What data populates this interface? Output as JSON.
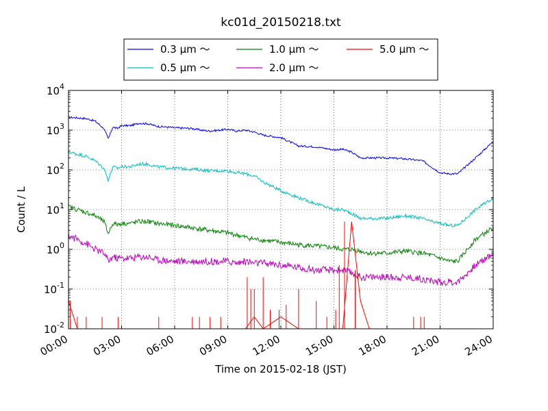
{
  "chart_data": {
    "type": "line",
    "title": "kc01d_20150218.txt",
    "xlabel": "Time on 2015-02-18 (JST)",
    "ylabel": "Count / L",
    "yscale": "log",
    "ylim": [
      0.01,
      10000
    ],
    "xlim": [
      "00:00",
      "24:00"
    ],
    "grid": true,
    "legend_position": "top-center",
    "x_ticks": [
      "00:00",
      "03:00",
      "06:00",
      "09:00",
      "12:00",
      "15:00",
      "18:00",
      "21:00",
      "24:00"
    ],
    "y_ticks": [
      {
        "base": "10",
        "exp": "-2"
      },
      {
        "base": "10",
        "exp": "-1"
      },
      {
        "base": "10",
        "exp": "0"
      },
      {
        "base": "10",
        "exp": "1"
      },
      {
        "base": "10",
        "exp": "2"
      },
      {
        "base": "10",
        "exp": "3"
      },
      {
        "base": "10",
        "exp": "4"
      }
    ],
    "x_hours": [
      0,
      0.5,
      1,
      1.5,
      2,
      2.25,
      2.5,
      2.75,
      3,
      3.5,
      4,
      4.5,
      5,
      6,
      7,
      7.5,
      8,
      9,
      9.5,
      10,
      10.5,
      11,
      12,
      13,
      14,
      15,
      15.5,
      16,
      16.5,
      17,
      18,
      19,
      20,
      20.5,
      21,
      21.5,
      22,
      23,
      24
    ],
    "series": [
      {
        "name": "0.3 μm ～",
        "color": "#0000ff",
        "values": [
          2100,
          2050,
          1950,
          1700,
          1100,
          600,
          1200,
          1100,
          1300,
          1300,
          1500,
          1450,
          1250,
          1150,
          1100,
          1000,
          950,
          1050,
          950,
          1000,
          900,
          750,
          650,
          400,
          380,
          320,
          330,
          280,
          200,
          200,
          200,
          190,
          170,
          120,
          85,
          80,
          80,
          200,
          520
        ]
      },
      {
        "name": "0.5 μm ～",
        "color": "#00bfbf",
        "values": [
          280,
          250,
          220,
          170,
          110,
          55,
          120,
          110,
          120,
          120,
          140,
          140,
          120,
          110,
          105,
          100,
          95,
          95,
          85,
          80,
          70,
          50,
          30,
          20,
          14,
          10,
          10,
          8,
          6,
          6,
          6,
          7,
          6,
          5,
          4.5,
          4,
          4,
          10,
          20
        ]
      },
      {
        "name": "1.0 μm ～",
        "color": "#008000",
        "values": [
          12,
          10,
          8.5,
          7,
          5,
          2.5,
          4.5,
          4.2,
          4.5,
          4.5,
          5,
          5,
          4.5,
          4,
          3.5,
          3.2,
          3,
          2.6,
          2.3,
          2,
          1.8,
          1.7,
          1.5,
          1.3,
          1.2,
          1.1,
          1.0,
          1.0,
          0.9,
          0.8,
          0.8,
          0.9,
          0.8,
          0.7,
          0.6,
          0.5,
          0.5,
          1.8,
          3.5
        ]
      },
      {
        "name": "2.0 μm ～",
        "color": "#bf00bf",
        "values": [
          2.2,
          1.8,
          1.4,
          1.0,
          0.8,
          0.5,
          0.65,
          0.6,
          0.6,
          0.6,
          0.65,
          0.65,
          0.55,
          0.5,
          0.5,
          0.5,
          0.5,
          0.5,
          0.45,
          0.5,
          0.45,
          0.45,
          0.4,
          0.35,
          0.3,
          0.3,
          0.3,
          0.25,
          0.2,
          0.2,
          0.2,
          0.2,
          0.18,
          0.16,
          0.15,
          0.15,
          0.15,
          0.4,
          0.8
        ]
      },
      {
        "name": "5.0 μm ～",
        "color": "#ff0000",
        "values": [
          0.05,
          0.01,
          0.01,
          0.01,
          0.01,
          0.01,
          0.01,
          0.01,
          0.01,
          0.01,
          0.01,
          0.01,
          0.01,
          0.01,
          0.01,
          0.01,
          0.01,
          0.01,
          0.01,
          0.01,
          0.02,
          0.01,
          0.02,
          0.01,
          0.01,
          0.01,
          0.01,
          5,
          0.05,
          0.01,
          0.01,
          0.01,
          0.01,
          0.01,
          0.01,
          0.01,
          0.01,
          0.01,
          0.01
        ]
      }
    ]
  }
}
